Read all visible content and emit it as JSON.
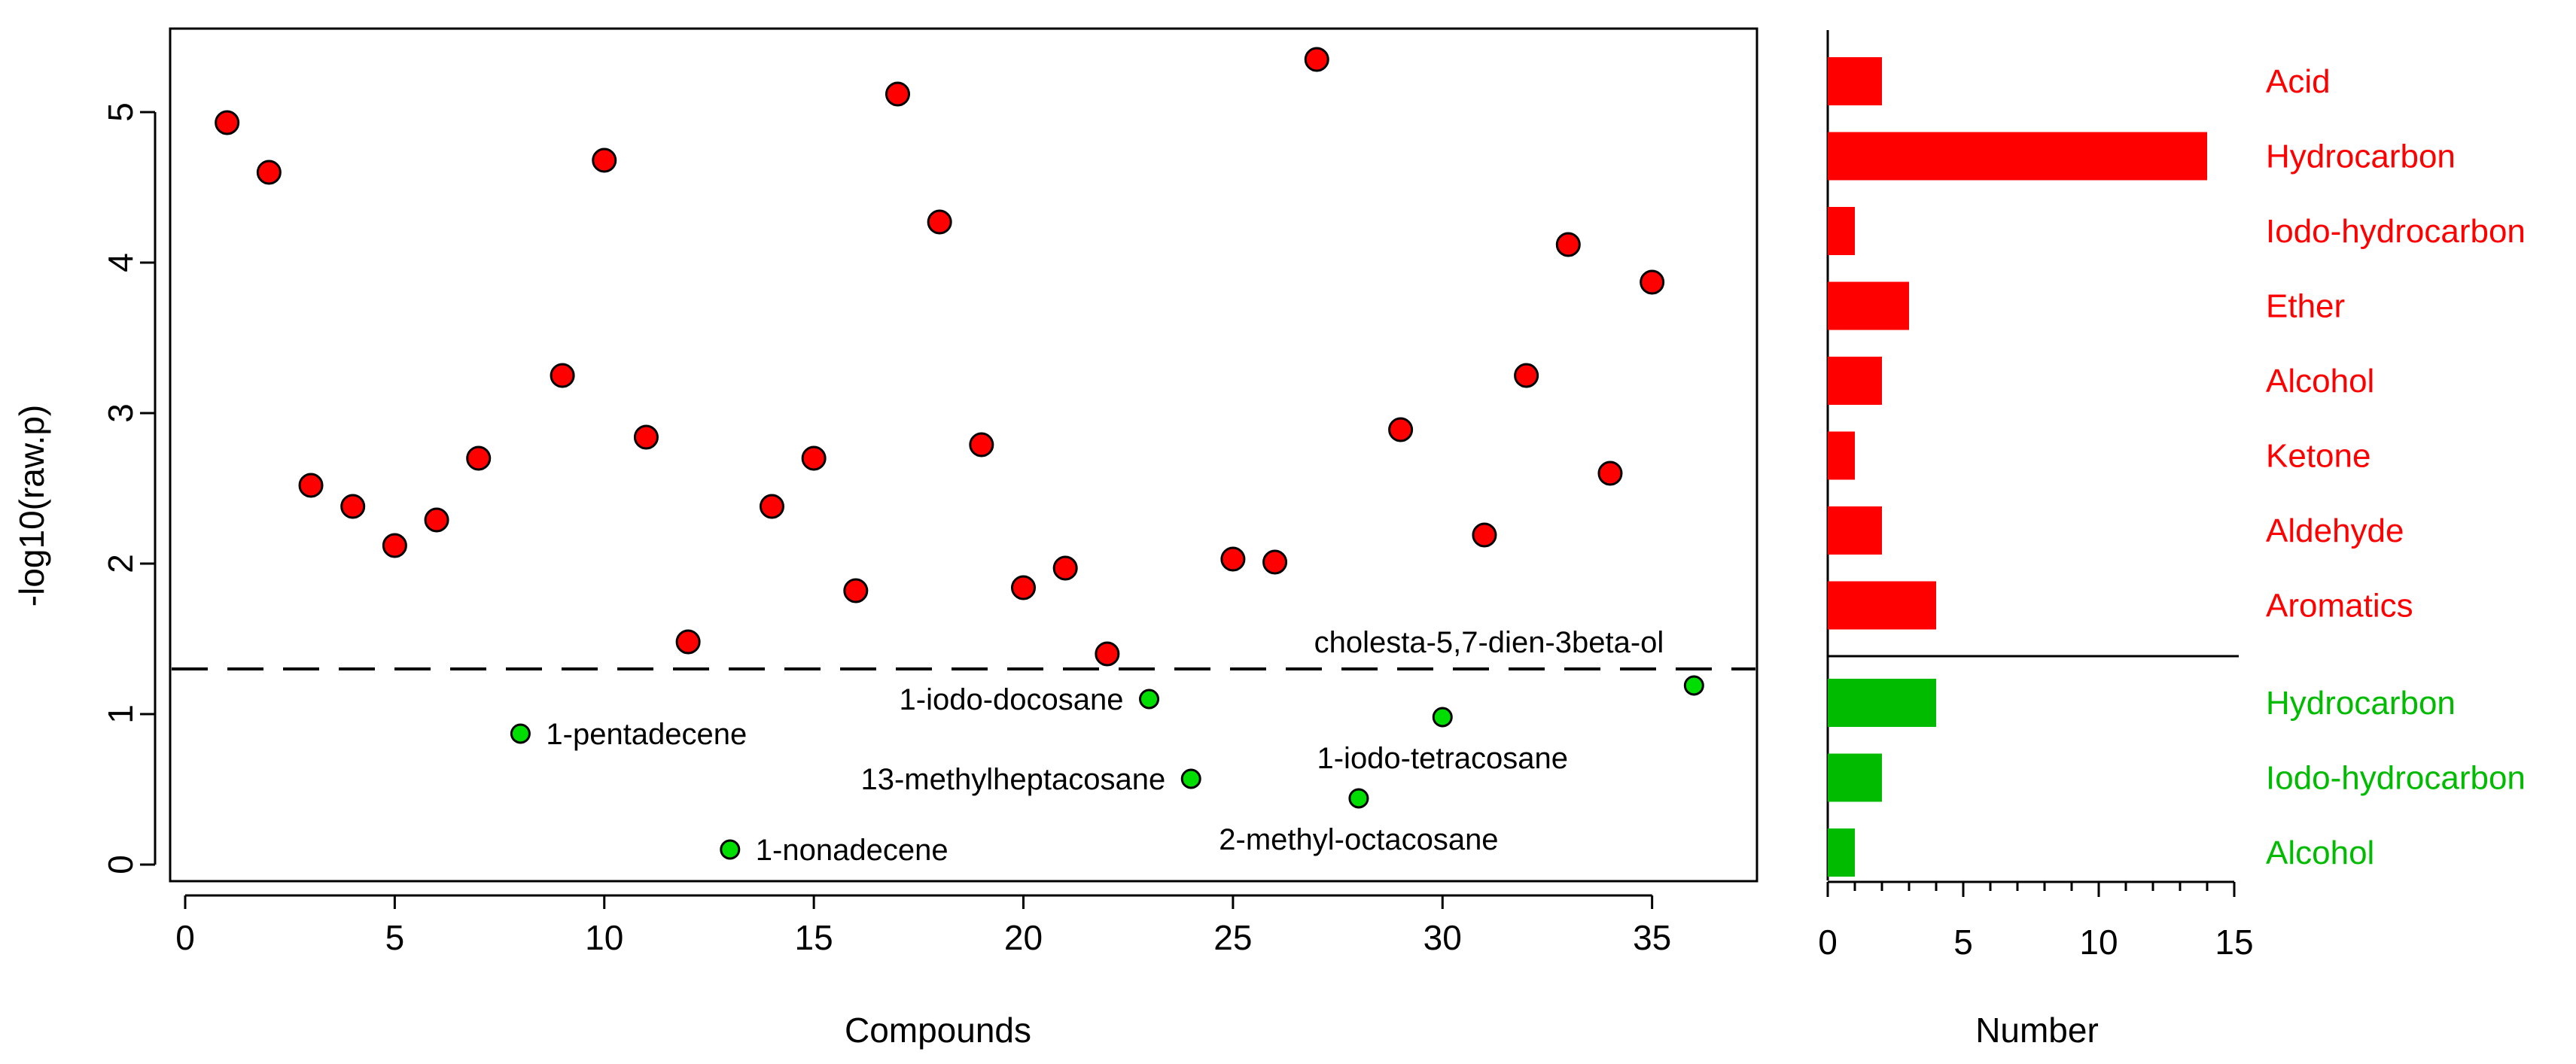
{
  "chart_data": [
    {
      "type": "scatter",
      "xlabel": "Compounds",
      "ylabel": "-log10(raw.p)",
      "xlim": [
        0,
        37
      ],
      "ylim": [
        0,
        5.5
      ],
      "xticks": [
        0,
        5,
        10,
        15,
        20,
        25,
        30,
        35
      ],
      "yticks": [
        0,
        1,
        2,
        3,
        4,
        5
      ],
      "threshold": 1.3,
      "grid": false,
      "colors": {
        "significant": "#ff0000",
        "nonsignificant": "#00dd00",
        "outline": "#000000"
      },
      "series": [
        {
          "group": "significant",
          "points": [
            {
              "x": 1,
              "y": 4.93
            },
            {
              "x": 2,
              "y": 4.6
            },
            {
              "x": 3,
              "y": 2.52
            },
            {
              "x": 4,
              "y": 2.38
            },
            {
              "x": 5,
              "y": 2.12
            },
            {
              "x": 6,
              "y": 2.29
            },
            {
              "x": 7,
              "y": 2.7
            },
            {
              "x": 9,
              "y": 3.25
            },
            {
              "x": 10,
              "y": 4.68
            },
            {
              "x": 11,
              "y": 2.84
            },
            {
              "x": 12,
              "y": 1.48
            },
            {
              "x": 14,
              "y": 2.38
            },
            {
              "x": 15,
              "y": 2.7
            },
            {
              "x": 16,
              "y": 1.82
            },
            {
              "x": 17,
              "y": 5.12
            },
            {
              "x": 18,
              "y": 4.27
            },
            {
              "x": 19,
              "y": 2.79
            },
            {
              "x": 20,
              "y": 1.84
            },
            {
              "x": 21,
              "y": 1.97
            },
            {
              "x": 22,
              "y": 1.4
            },
            {
              "x": 25,
              "y": 2.03
            },
            {
              "x": 26,
              "y": 2.01
            },
            {
              "x": 27,
              "y": 5.35
            },
            {
              "x": 29,
              "y": 2.89
            },
            {
              "x": 31,
              "y": 2.19
            },
            {
              "x": 32,
              "y": 3.25
            },
            {
              "x": 33,
              "y": 4.12
            },
            {
              "x": 34,
              "y": 2.6
            },
            {
              "x": 35,
              "y": 3.87
            }
          ]
        },
        {
          "group": "nonsignificant",
          "points": [
            {
              "x": 8,
              "y": 0.87,
              "label": "1-pentadecene",
              "side": "right"
            },
            {
              "x": 13,
              "y": 0.1,
              "label": "1-nonadecene",
              "side": "right"
            },
            {
              "x": 23,
              "y": 1.1,
              "label": "1-iodo-docosane",
              "side": "left"
            },
            {
              "x": 24,
              "y": 0.57,
              "label": "13-methylheptacosane",
              "side": "left"
            },
            {
              "x": 28,
              "y": 0.44,
              "label": "2-methyl-octacosane",
              "side": "below"
            },
            {
              "x": 30,
              "y": 0.98,
              "label": "1-iodo-tetracosane",
              "side": "below"
            },
            {
              "x": 36,
              "y": 1.19,
              "label": "cholesta-5,7-dien-3beta-ol",
              "side": "above-left"
            }
          ]
        }
      ]
    },
    {
      "type": "bar",
      "orientation": "horizontal",
      "xlabel": "Number",
      "xlim": [
        0,
        15
      ],
      "xticks": [
        0,
        5,
        10,
        15
      ],
      "grid": false,
      "groups": [
        {
          "color": "#ff0000",
          "categories": [
            "Acid",
            "Hydrocarbon",
            "Iodo-hydrocarbon",
            "Ether",
            "Alcohol",
            "Ketone",
            "Aldehyde",
            "Aromatics"
          ],
          "values": [
            2,
            14,
            1,
            3,
            2,
            1,
            2,
            4
          ]
        },
        {
          "color": "#00bb00",
          "categories": [
            "Hydrocarbon",
            "Iodo-hydrocarbon",
            "Alcohol"
          ],
          "values": [
            4,
            2,
            1
          ]
        }
      ]
    }
  ]
}
